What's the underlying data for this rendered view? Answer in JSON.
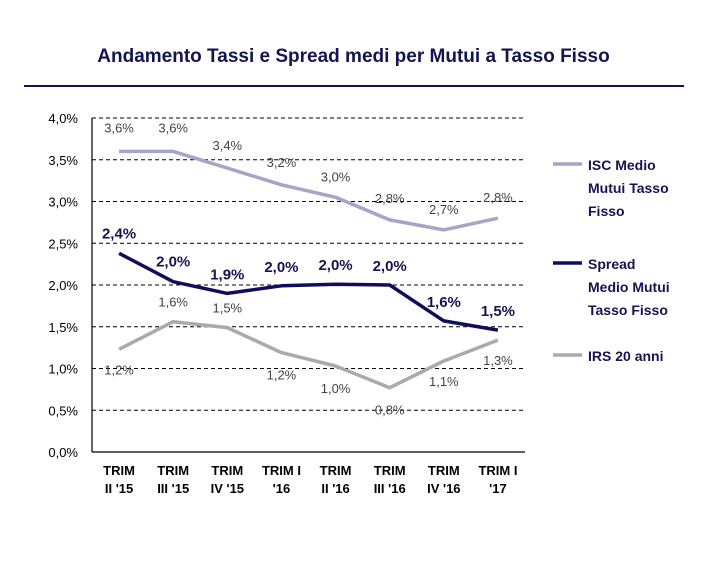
{
  "chart_data": {
    "type": "line",
    "title": "Andamento Tassi e Spread medi per Mutui a Tasso Fisso",
    "categories": [
      [
        "TRIM",
        "II '15"
      ],
      [
        "TRIM",
        "III '15"
      ],
      [
        "TRIM",
        "IV '15"
      ],
      [
        "TRIM I",
        "'16"
      ],
      [
        "TRIM",
        "II '16"
      ],
      [
        "TRIM",
        "III '16"
      ],
      [
        "TRIM",
        "IV '16"
      ],
      [
        "TRIM I",
        "'17"
      ]
    ],
    "y_ticks": [
      "0,0%",
      "0,5%",
      "1,0%",
      "1,5%",
      "2,0%",
      "2,5%",
      "3,0%",
      "3,5%",
      "4,0%"
    ],
    "ylim": [
      0,
      4.0
    ],
    "grid": true,
    "legend_position": "right",
    "series": [
      {
        "name": "ISC Medio Mutui Tasso Fisso",
        "legend_lines": [
          "ISC Medio",
          "Mutui Tasso",
          "Fisso"
        ],
        "color": "#a3a6c6",
        "values": [
          3.6,
          3.6,
          3.4,
          3.2,
          3.05,
          2.78,
          2.66,
          2.8
        ],
        "labels": [
          "3,6%",
          "3,6%",
          "3,4%",
          "3,2%",
          "3,0%",
          "2,8%",
          "2,7%",
          "2,8%"
        ],
        "label_bold": false
      },
      {
        "name": "Spread Medio Mutui Tasso Fisso",
        "legend_lines": [
          "Spread",
          "Medio Mutui",
          "Tasso Fisso"
        ],
        "color": "#0e0e5c",
        "values": [
          2.38,
          2.04,
          1.9,
          1.99,
          2.01,
          2.0,
          1.57,
          1.46
        ],
        "labels": [
          "2,4%",
          "2,0%",
          "1,9%",
          "2,0%",
          "2,0%",
          "2,0%",
          "1,6%",
          "1,5%"
        ],
        "label_bold": true
      },
      {
        "name": "IRS 20 anni",
        "legend_lines": [
          "IRS 20 anni"
        ],
        "color": "#aaaaaa",
        "values": [
          1.23,
          1.56,
          1.49,
          1.19,
          1.03,
          0.77,
          1.09,
          1.34
        ],
        "labels": [
          "1,2%",
          "1,6%",
          "1,5%",
          "1,2%",
          "1,0%",
          "0,8%",
          "1,1%",
          "1,3%"
        ],
        "label_bold": false
      }
    ]
  }
}
